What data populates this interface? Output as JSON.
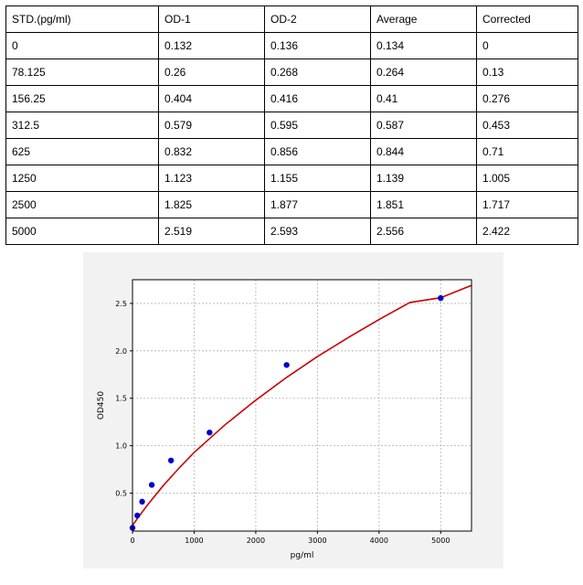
{
  "table": {
    "headers": [
      "STD.(pg/ml)",
      "OD-1",
      "OD-2",
      "Average",
      "Corrected"
    ],
    "rows": [
      [
        "0",
        "0.132",
        "0.136",
        "0.134",
        "0"
      ],
      [
        "78.125",
        "0.26",
        "0.268",
        "0.264",
        "0.13"
      ],
      [
        "156.25",
        "0.404",
        "0.416",
        "0.41",
        "0.276"
      ],
      [
        "312.5",
        "0.579",
        "0.595",
        "0.587",
        "0.453"
      ],
      [
        "625",
        "0.832",
        "0.856",
        "0.844",
        "0.71"
      ],
      [
        "1250",
        "1.123",
        "1.155",
        "1.139",
        "1.005"
      ],
      [
        "2500",
        "1.825",
        "1.877",
        "1.851",
        "1.717"
      ],
      [
        "5000",
        "2.519",
        "2.593",
        "2.556",
        "2.422"
      ]
    ]
  },
  "chart_data": {
    "type": "scatter",
    "title": "",
    "xlabel": "pg/ml",
    "ylabel": "OD450",
    "xlim": [
      0,
      5500
    ],
    "ylim": [
      0.1,
      2.75
    ],
    "x_ticks": [
      0,
      1000,
      2000,
      3000,
      4000,
      5000
    ],
    "y_ticks": [
      0.5,
      1.0,
      1.5,
      2.0,
      2.5
    ],
    "x_tick_labels": [
      "0",
      "1000",
      "2000",
      "3000",
      "4000",
      "5000"
    ],
    "y_tick_labels": [
      "0.5",
      "1.0",
      "1.5",
      "2.0",
      "2.5"
    ],
    "grid": true,
    "series": [
      {
        "kind": "points",
        "color": "#0000cc",
        "x": [
          0,
          78.125,
          156.25,
          312.5,
          625,
          1250,
          2500,
          5000
        ],
        "y": [
          0.134,
          0.264,
          0.41,
          0.587,
          0.844,
          1.139,
          1.851,
          2.556
        ]
      },
      {
        "kind": "fit-curve",
        "color": "#cc0000",
        "x": [
          0,
          100,
          250,
          500,
          750,
          1000,
          1500,
          2000,
          2500,
          3000,
          3500,
          4000,
          4500,
          5000,
          5500
        ],
        "y": [
          0.16,
          0.25,
          0.38,
          0.58,
          0.76,
          0.93,
          1.22,
          1.48,
          1.72,
          1.94,
          2.14,
          2.33,
          2.51,
          2.56,
          2.69
        ]
      }
    ]
  }
}
